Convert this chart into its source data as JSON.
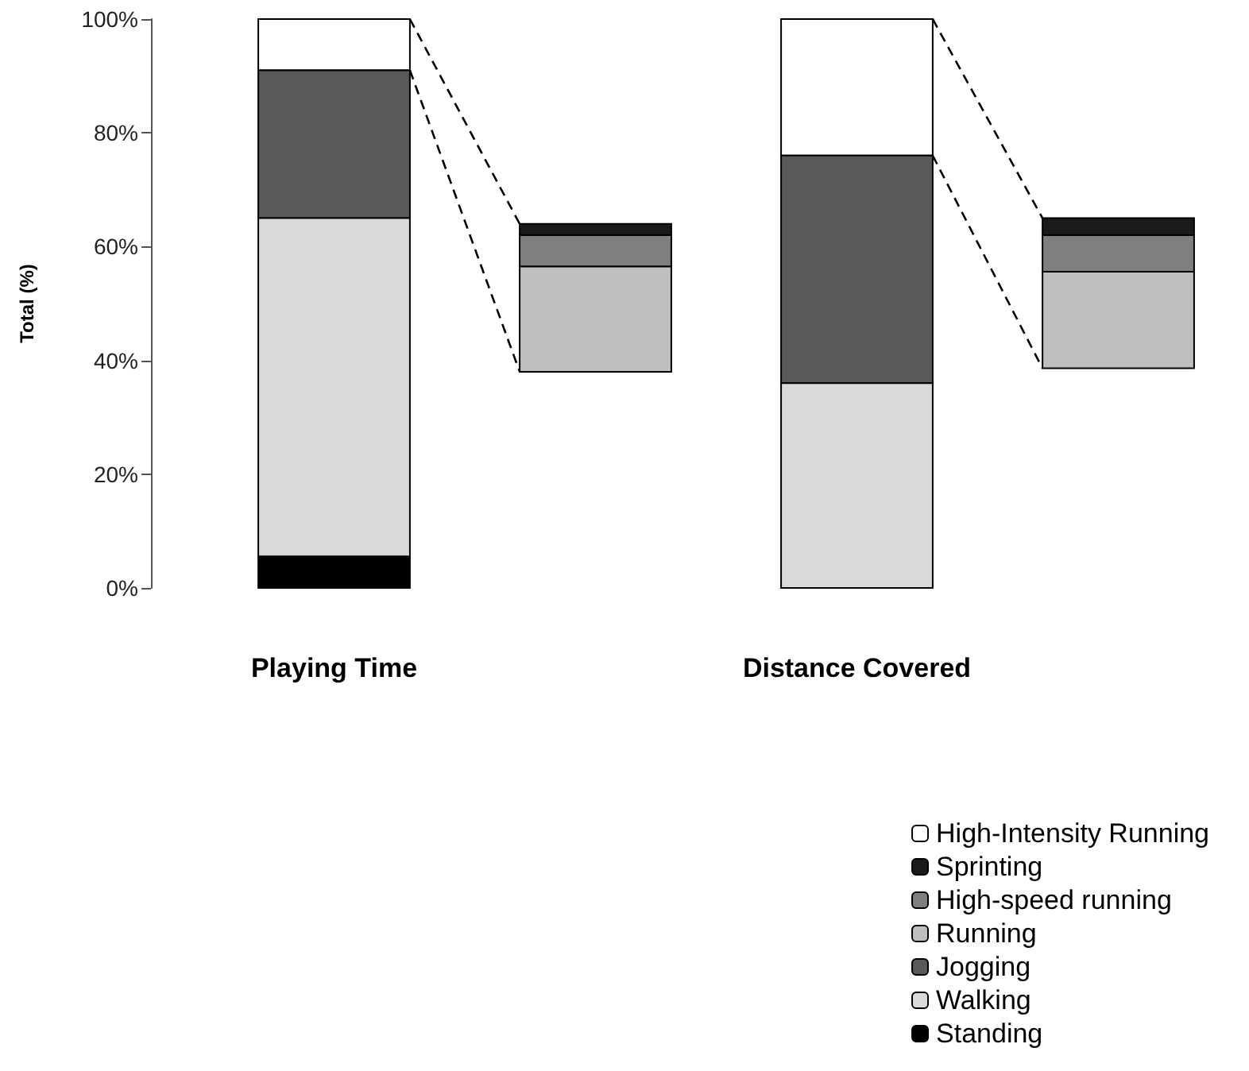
{
  "chart_data": {
    "type": "bar",
    "ylabel": "Total (%)",
    "categories": [
      "Playing Time",
      null,
      "Distance Covered",
      null
    ],
    "series": [
      {
        "name": "High-Intensity Running",
        "color": "#ffffff",
        "base": [
          91,
          null,
          76,
          null
        ],
        "values": [
          9,
          null,
          24,
          null
        ]
      },
      {
        "name": "Sprinting",
        "color": "#1a1a1a",
        "base": [
          null,
          62,
          null,
          62
        ],
        "values": [
          null,
          2,
          null,
          3
        ]
      },
      {
        "name": "High-speed running",
        "color": "#7f7f7f",
        "base": [
          null,
          56.5,
          null,
          55.6
        ],
        "values": [
          null,
          5.5,
          null,
          6.4
        ]
      },
      {
        "name": "Running",
        "color": "#bfbfbf",
        "base": [
          null,
          38,
          null,
          38.6
        ],
        "values": [
          null,
          18.5,
          null,
          17
        ]
      },
      {
        "name": "Jogging",
        "color": "#595959",
        "base": [
          65,
          null,
          36,
          null
        ],
        "values": [
          26,
          null,
          40,
          null
        ]
      },
      {
        "name": "Walking",
        "color": "#d9d9d9",
        "base": [
          5.5,
          null,
          0,
          null
        ],
        "values": [
          59.5,
          null,
          36,
          null
        ]
      },
      {
        "name": "Standing",
        "color": "#000000",
        "base": [
          0,
          null,
          null,
          null
        ],
        "values": [
          5.5,
          null,
          null,
          null
        ]
      }
    ],
    "ylim": [
      0,
      100
    ],
    "yticks": [
      {
        "value": 0,
        "label": "0%"
      },
      {
        "value": 20,
        "label": "20%"
      },
      {
        "value": 40,
        "label": "40%"
      },
      {
        "value": 60,
        "label": "60%"
      },
      {
        "value": 80,
        "label": "80%"
      },
      {
        "value": 100,
        "label": "100%"
      }
    ],
    "grid": false,
    "legend": "bottom right"
  }
}
